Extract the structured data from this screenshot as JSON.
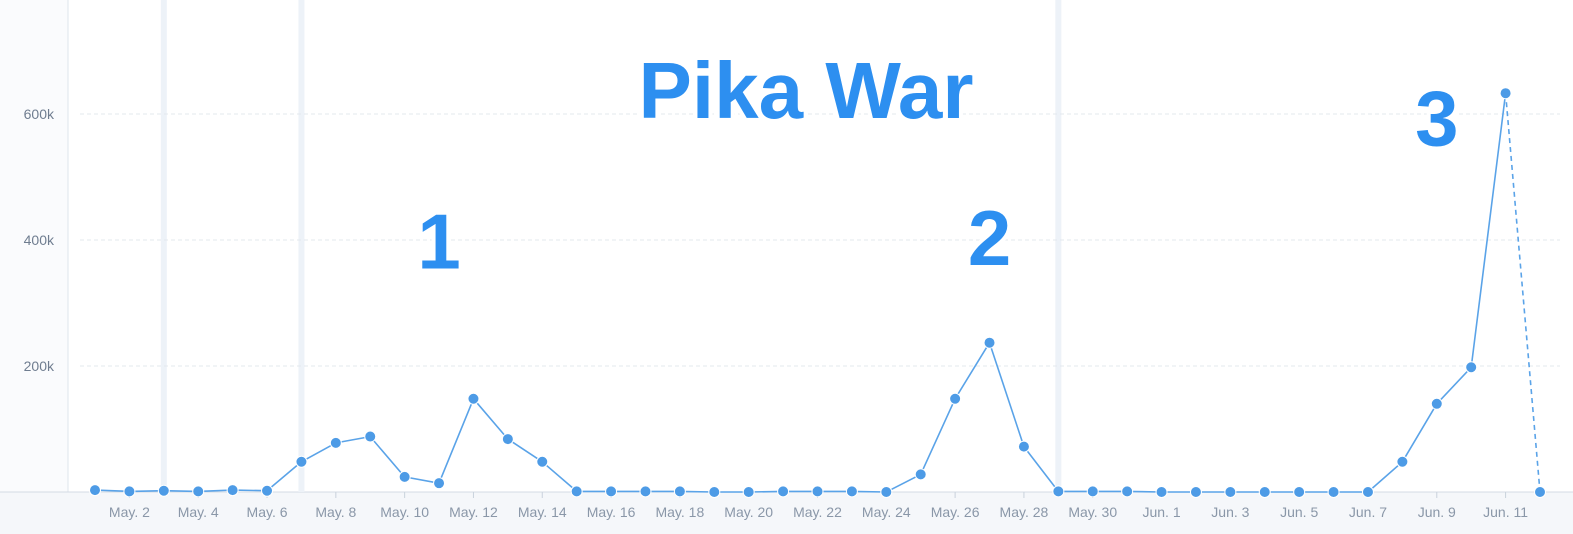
{
  "chart_data": {
    "type": "line",
    "title": "Pika War",
    "xlabel": "",
    "ylabel": "",
    "ylim": [
      0,
      750000
    ],
    "y_ticks": [
      {
        "value": 200000,
        "label": "200k"
      },
      {
        "value": 400000,
        "label": "400k"
      },
      {
        "value": 600000,
        "label": "600k"
      }
    ],
    "x_tick_labels": [
      "May. 2",
      "May. 4",
      "May. 6",
      "May. 8",
      "May. 10",
      "May. 12",
      "May. 14",
      "May. 16",
      "May. 18",
      "May. 20",
      "May. 22",
      "May. 24",
      "May. 26",
      "May. 28",
      "May. 30",
      "Jun. 1",
      "Jun. 3",
      "Jun. 5",
      "Jun. 7",
      "Jun. 9",
      "Jun. 11"
    ],
    "x_tick_dates": [
      "2016-05-02",
      "2016-05-04",
      "2016-05-06",
      "2016-05-08",
      "2016-05-10",
      "2016-05-12",
      "2016-05-14",
      "2016-05-16",
      "2016-05-18",
      "2016-05-20",
      "2016-05-22",
      "2016-05-24",
      "2016-05-26",
      "2016-05-28",
      "2016-05-30",
      "2016-06-01",
      "2016-06-03",
      "2016-06-05",
      "2016-06-07",
      "2016-06-09",
      "2016-06-11"
    ],
    "grid": true,
    "series": [
      {
        "x": [
          "2016-05-01",
          "2016-05-02",
          "2016-05-03",
          "2016-05-04",
          "2016-05-05",
          "2016-05-06",
          "2016-05-07",
          "2016-05-08",
          "2016-05-09",
          "2016-05-10",
          "2016-05-11",
          "2016-05-12",
          "2016-05-13",
          "2016-05-14",
          "2016-05-15",
          "2016-05-16",
          "2016-05-17",
          "2016-05-18",
          "2016-05-19",
          "2016-05-20",
          "2016-05-21",
          "2016-05-22",
          "2016-05-23",
          "2016-05-24",
          "2016-05-25",
          "2016-05-26",
          "2016-05-27",
          "2016-05-28",
          "2016-05-29",
          "2016-05-30",
          "2016-05-31",
          "2016-06-01",
          "2016-06-02",
          "2016-06-03",
          "2016-06-04",
          "2016-06-05",
          "2016-06-06",
          "2016-06-07",
          "2016-06-08",
          "2016-06-09",
          "2016-06-10",
          "2016-06-11",
          "2016-06-12"
        ],
        "values": [
          3000,
          1000,
          2000,
          1000,
          3000,
          2000,
          48000,
          78000,
          88000,
          24000,
          14000,
          148000,
          84000,
          48000,
          1000,
          1000,
          1000,
          1000,
          0,
          0,
          1000,
          1000,
          1000,
          0,
          28000,
          148000,
          237000,
          72000,
          1000,
          1000,
          1000,
          0,
          0,
          0,
          0,
          0,
          0,
          0,
          48000,
          140000,
          198000,
          633000,
          0
        ],
        "dashed_last_segment": true
      }
    ],
    "band_dates": [
      "2016-05-03",
      "2016-05-07",
      "2016-05-29"
    ],
    "annotations": [
      {
        "label": "1",
        "x": "2016-05-11",
        "y": 355000
      },
      {
        "label": "2",
        "x": "2016-05-27",
        "y": 360000
      },
      {
        "label": "3",
        "x": "2016-06-09",
        "y": 550000
      }
    ],
    "line_color": "#5aa3e8",
    "point_color": "#4d9be6",
    "title_color": "#2d8ff0"
  }
}
